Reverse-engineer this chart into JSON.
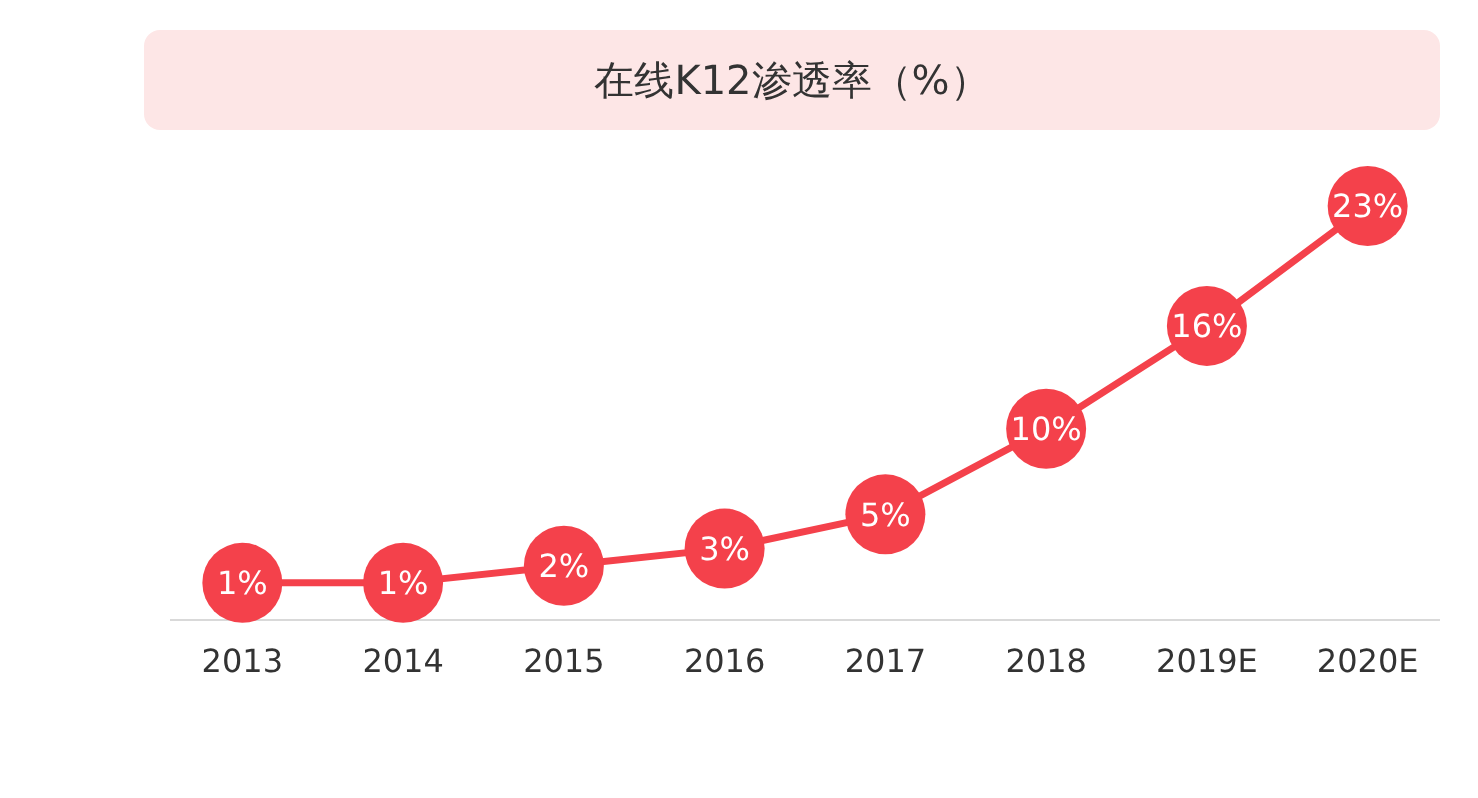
{
  "chart_data": {
    "type": "line",
    "title": "在线K12渗透率（%）",
    "categories": [
      "2013",
      "2014",
      "2015",
      "2016",
      "2017",
      "2018",
      "2019E",
      "2020E"
    ],
    "series": [
      {
        "color": "#f4414b",
        "values": [
          1,
          1,
          2,
          3,
          5,
          10,
          16,
          23
        ],
        "value_labels": [
          "1%",
          "1%",
          "2%",
          "3%",
          "5%",
          "10%",
          "16%",
          "23%"
        ]
      }
    ],
    "marker": "circle",
    "line_style": "solid"
  }
}
